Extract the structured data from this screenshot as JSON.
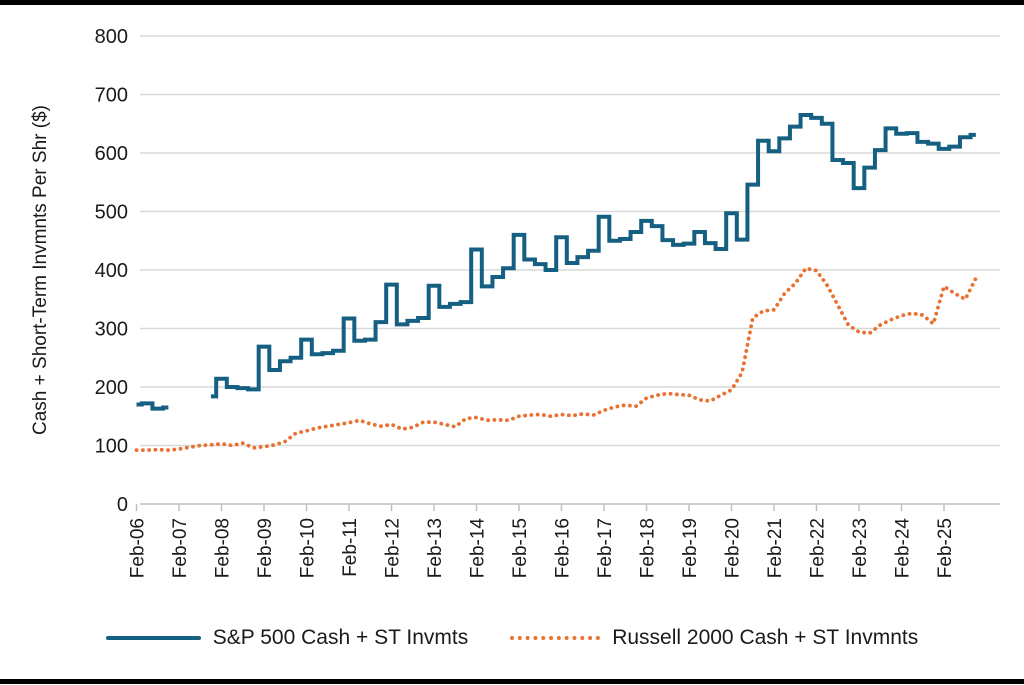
{
  "frame": {
    "border_color": "#000000"
  },
  "colors": {
    "sp500": "#156082",
    "russell2000": "#E97132",
    "gridline": "#D9D9D9",
    "axis_line": "#BFBFBF",
    "text": "#1a1a1a",
    "background": "#FFFFFF"
  },
  "chart_data": {
    "type": "line",
    "title": "",
    "xlabel": "",
    "ylabel": "Cash + Short-Term Invmnts Per Shr ($)",
    "ylim": [
      0,
      800
    ],
    "yticks": [
      0,
      100,
      200,
      300,
      400,
      500,
      600,
      700,
      800
    ],
    "xticklabels": [
      "Feb-06",
      "Feb-07",
      "Feb-08",
      "Feb-09",
      "Feb-10",
      "Feb-11",
      "Feb-12",
      "Feb-13",
      "Feb-14",
      "Feb-15",
      "Feb-16",
      "Feb-17",
      "Feb-18",
      "Feb-19",
      "Feb-20",
      "Feb-21",
      "Feb-22",
      "Feb-23",
      "Feb-24",
      "Feb-25"
    ],
    "x_frequency": "quarterly starting Feb-2006 (Feb/May/Aug/Nov each year)",
    "grid": "horizontal gridlines on",
    "legend_position": "bottom",
    "series": [
      {
        "name": "S&P 500 Cash + ST Invmts",
        "color": "#156082",
        "line_style": "solid",
        "interpolation": "step",
        "values": [
          170,
          172,
          163,
          165,
          null,
          null,
          null,
          184,
          214,
          200,
          198,
          196,
          269,
          229,
          244,
          250,
          281,
          256,
          258,
          262,
          317,
          279,
          281,
          311,
          375,
          307,
          313,
          318,
          373,
          337,
          342,
          345,
          435,
          372,
          388,
          403,
          460,
          418,
          410,
          400,
          456,
          412,
          422,
          433,
          491,
          450,
          453,
          465,
          484,
          475,
          451,
          443,
          445,
          465,
          446,
          436,
          497,
          452,
          546,
          621,
          603,
          625,
          645,
          665,
          660,
          650,
          588,
          583,
          540,
          575,
          605,
          642,
          633,
          634,
          619,
          616,
          607,
          611,
          627,
          631
        ]
      },
      {
        "name": "Russell 2000 Cash + ST Invmnts",
        "color": "#E97132",
        "line_style": "dotted",
        "interpolation": "linear",
        "values": [
          92,
          92,
          93,
          92,
          94,
          97,
          100,
          101,
          103,
          100,
          104,
          96,
          98,
          101,
          107,
          121,
          125,
          130,
          133,
          136,
          139,
          143,
          137,
          133,
          136,
          128,
          131,
          140,
          140,
          136,
          132,
          146,
          148,
          143,
          144,
          143,
          150,
          152,
          153,
          150,
          153,
          151,
          154,
          152,
          160,
          166,
          169,
          167,
          181,
          186,
          189,
          187,
          186,
          178,
          176,
          186,
          195,
          225,
          318,
          330,
          332,
          360,
          377,
          403,
          399,
          374,
          340,
          306,
          294,
          292,
          306,
          315,
          322,
          326,
          323,
          308,
          372,
          360,
          350,
          386
        ]
      }
    ]
  }
}
